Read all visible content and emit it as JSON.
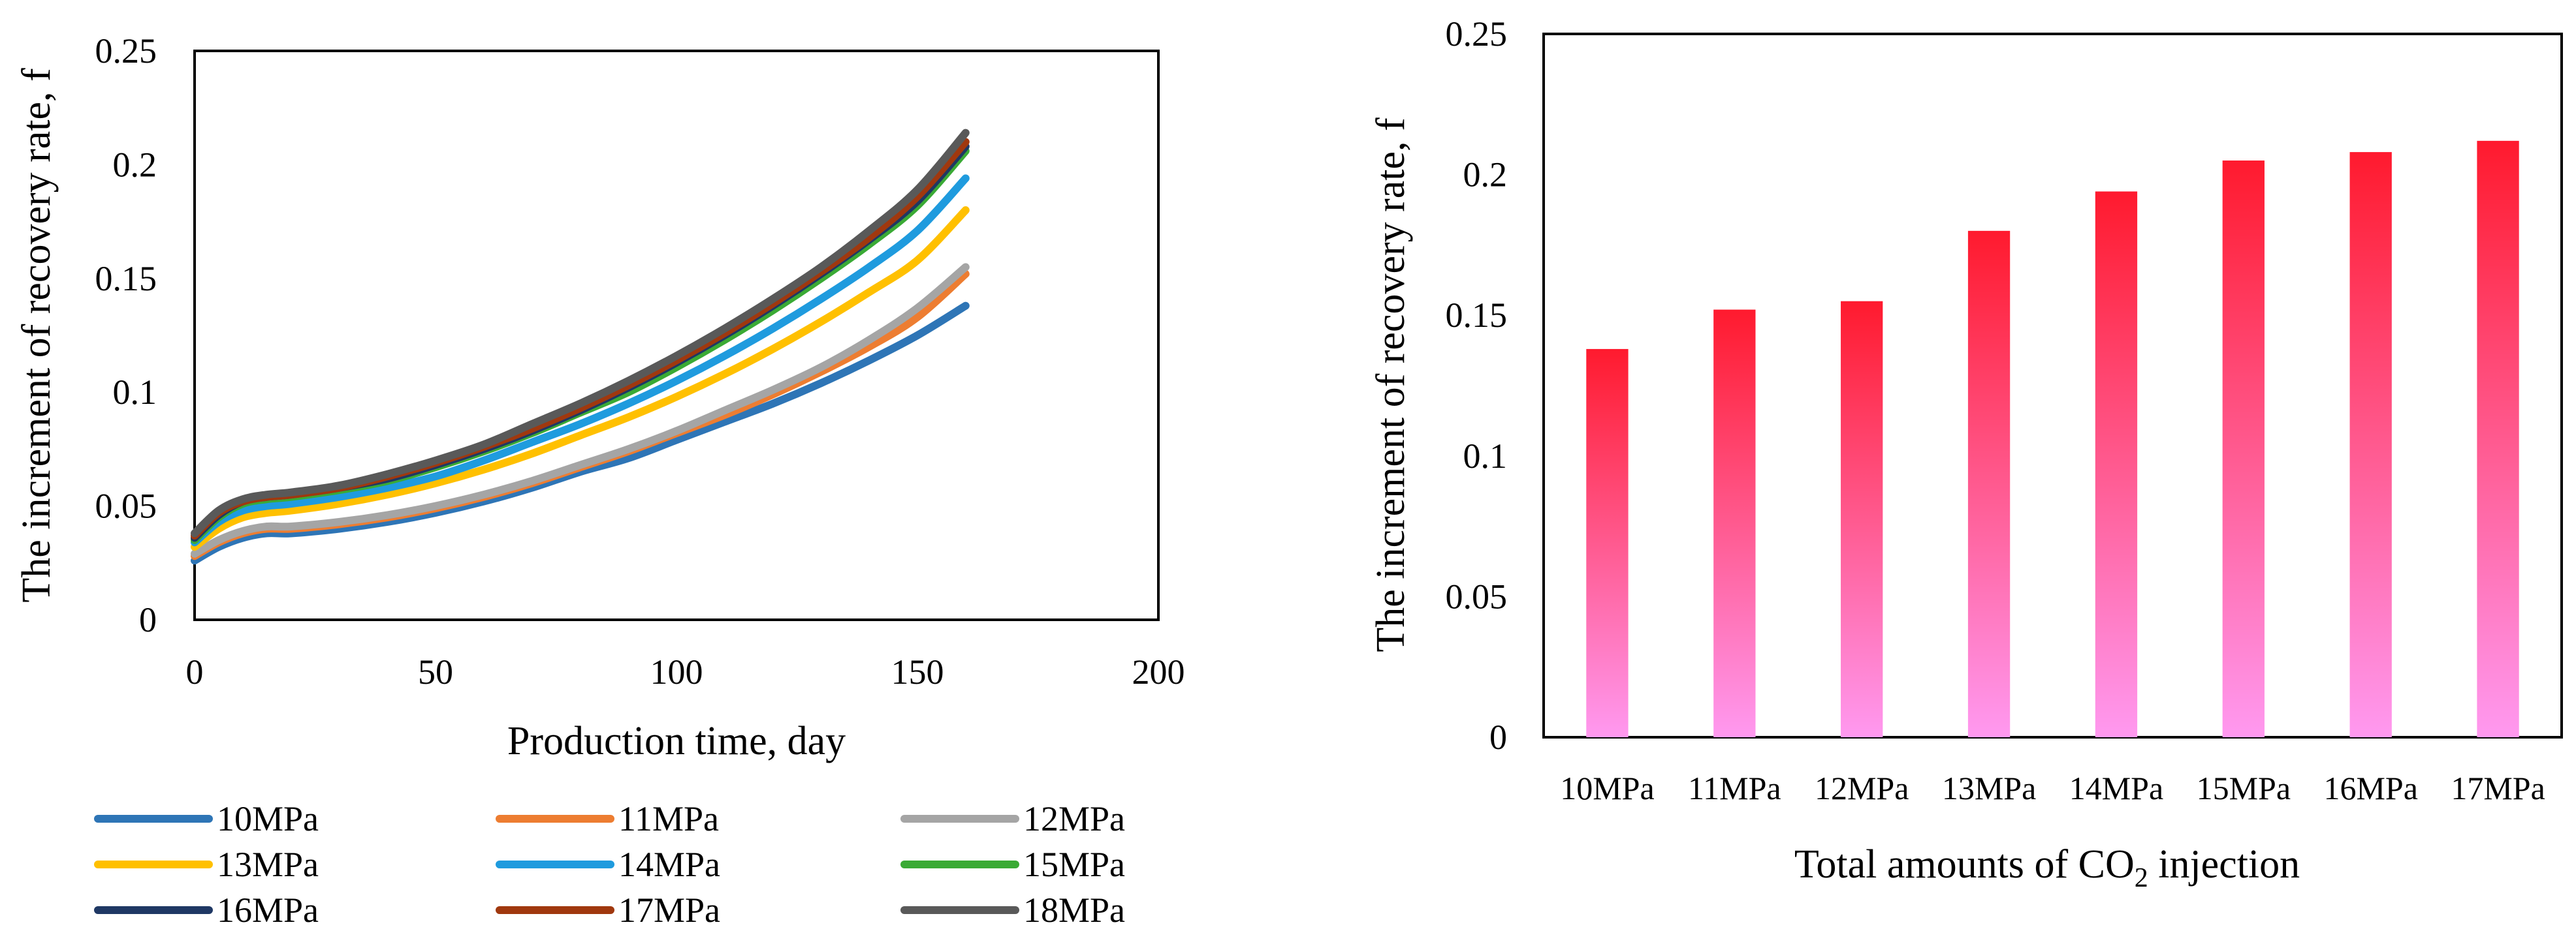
{
  "chart_data": [
    {
      "type": "line",
      "title": "",
      "xlabel": "Production time, day",
      "ylabel": "The increment of recovery rate, f",
      "xlim": [
        0,
        200
      ],
      "ylim": [
        0,
        0.25
      ],
      "x_ticks": [
        "0",
        "50",
        "100",
        "150",
        "200"
      ],
      "y_ticks": [
        "0",
        "0.05",
        "0.1",
        "0.15",
        "0.2",
        "0.25"
      ],
      "grid": false,
      "legend_position": "bottom",
      "x": [
        0,
        5,
        10,
        15,
        20,
        30,
        40,
        50,
        60,
        70,
        80,
        90,
        100,
        110,
        120,
        130,
        140,
        150,
        160
      ],
      "series": [
        {
          "name": "10MPa",
          "color": "#2E75B6",
          "values": [
            0.026,
            0.032,
            0.036,
            0.038,
            0.038,
            0.04,
            0.043,
            0.047,
            0.052,
            0.058,
            0.065,
            0.071,
            0.079,
            0.087,
            0.095,
            0.104,
            0.114,
            0.125,
            0.138
          ]
        },
        {
          "name": "11MPa",
          "color": "#ED7D31",
          "values": [
            0.028,
            0.034,
            0.038,
            0.04,
            0.04,
            0.042,
            0.045,
            0.049,
            0.054,
            0.06,
            0.067,
            0.074,
            0.082,
            0.09,
            0.099,
            0.109,
            0.12,
            0.133,
            0.152
          ]
        },
        {
          "name": "12MPa",
          "color": "#A5A5A5",
          "values": [
            0.029,
            0.035,
            0.039,
            0.041,
            0.041,
            0.043,
            0.046,
            0.05,
            0.055,
            0.061,
            0.068,
            0.075,
            0.083,
            0.092,
            0.101,
            0.111,
            0.123,
            0.137,
            0.155
          ]
        },
        {
          "name": "13MPa",
          "color": "#FFC000",
          "values": [
            0.032,
            0.04,
            0.045,
            0.047,
            0.048,
            0.051,
            0.055,
            0.06,
            0.066,
            0.073,
            0.081,
            0.089,
            0.098,
            0.108,
            0.119,
            0.131,
            0.144,
            0.158,
            0.18
          ]
        },
        {
          "name": "14MPa",
          "color": "#1F9BDE",
          "values": [
            0.034,
            0.043,
            0.048,
            0.05,
            0.051,
            0.054,
            0.058,
            0.063,
            0.07,
            0.078,
            0.086,
            0.095,
            0.105,
            0.116,
            0.128,
            0.141,
            0.155,
            0.171,
            0.194
          ]
        },
        {
          "name": "15MPa",
          "color": "#3AAA35",
          "values": [
            0.035,
            0.045,
            0.051,
            0.053,
            0.054,
            0.057,
            0.061,
            0.067,
            0.074,
            0.082,
            0.091,
            0.1,
            0.111,
            0.123,
            0.136,
            0.15,
            0.165,
            0.182,
            0.206
          ]
        },
        {
          "name": "16MPa",
          "color": "#1F3864",
          "values": [
            0.036,
            0.046,
            0.052,
            0.054,
            0.055,
            0.058,
            0.062,
            0.068,
            0.075,
            0.083,
            0.092,
            0.102,
            0.113,
            0.125,
            0.138,
            0.152,
            0.167,
            0.184,
            0.208
          ]
        },
        {
          "name": "17MPa",
          "color": "#A0380E",
          "values": [
            0.037,
            0.047,
            0.052,
            0.054,
            0.055,
            0.058,
            0.063,
            0.069,
            0.076,
            0.084,
            0.093,
            0.103,
            0.114,
            0.126,
            0.139,
            0.153,
            0.168,
            0.186,
            0.21
          ]
        },
        {
          "name": "18MPa",
          "color": "#595959",
          "values": [
            0.038,
            0.048,
            0.053,
            0.055,
            0.056,
            0.059,
            0.064,
            0.07,
            0.077,
            0.086,
            0.095,
            0.105,
            0.116,
            0.128,
            0.141,
            0.155,
            0.171,
            0.189,
            0.214
          ]
        }
      ]
    },
    {
      "type": "bar",
      "title": "",
      "xlabel_main": "Total amounts of CO",
      "xlabel_sub": "2",
      "xlabel_tail": " injection",
      "ylabel": "The increment of recovery rate, f",
      "ylim": [
        0,
        0.25
      ],
      "y_ticks": [
        "0",
        "0.05",
        "0.1",
        "0.15",
        "0.2",
        "0.25"
      ],
      "grid": false,
      "bar_color_top": "#FF1A2E",
      "bar_color_bottom": "#FF99F0",
      "categories": [
        "10MPa",
        "11MPa",
        "12MPa",
        "13MPa",
        "14MPa",
        "15MPa",
        "16MPa",
        "17MPa"
      ],
      "values": [
        0.138,
        0.152,
        0.155,
        0.18,
        0.194,
        0.205,
        0.208,
        0.212
      ]
    }
  ]
}
